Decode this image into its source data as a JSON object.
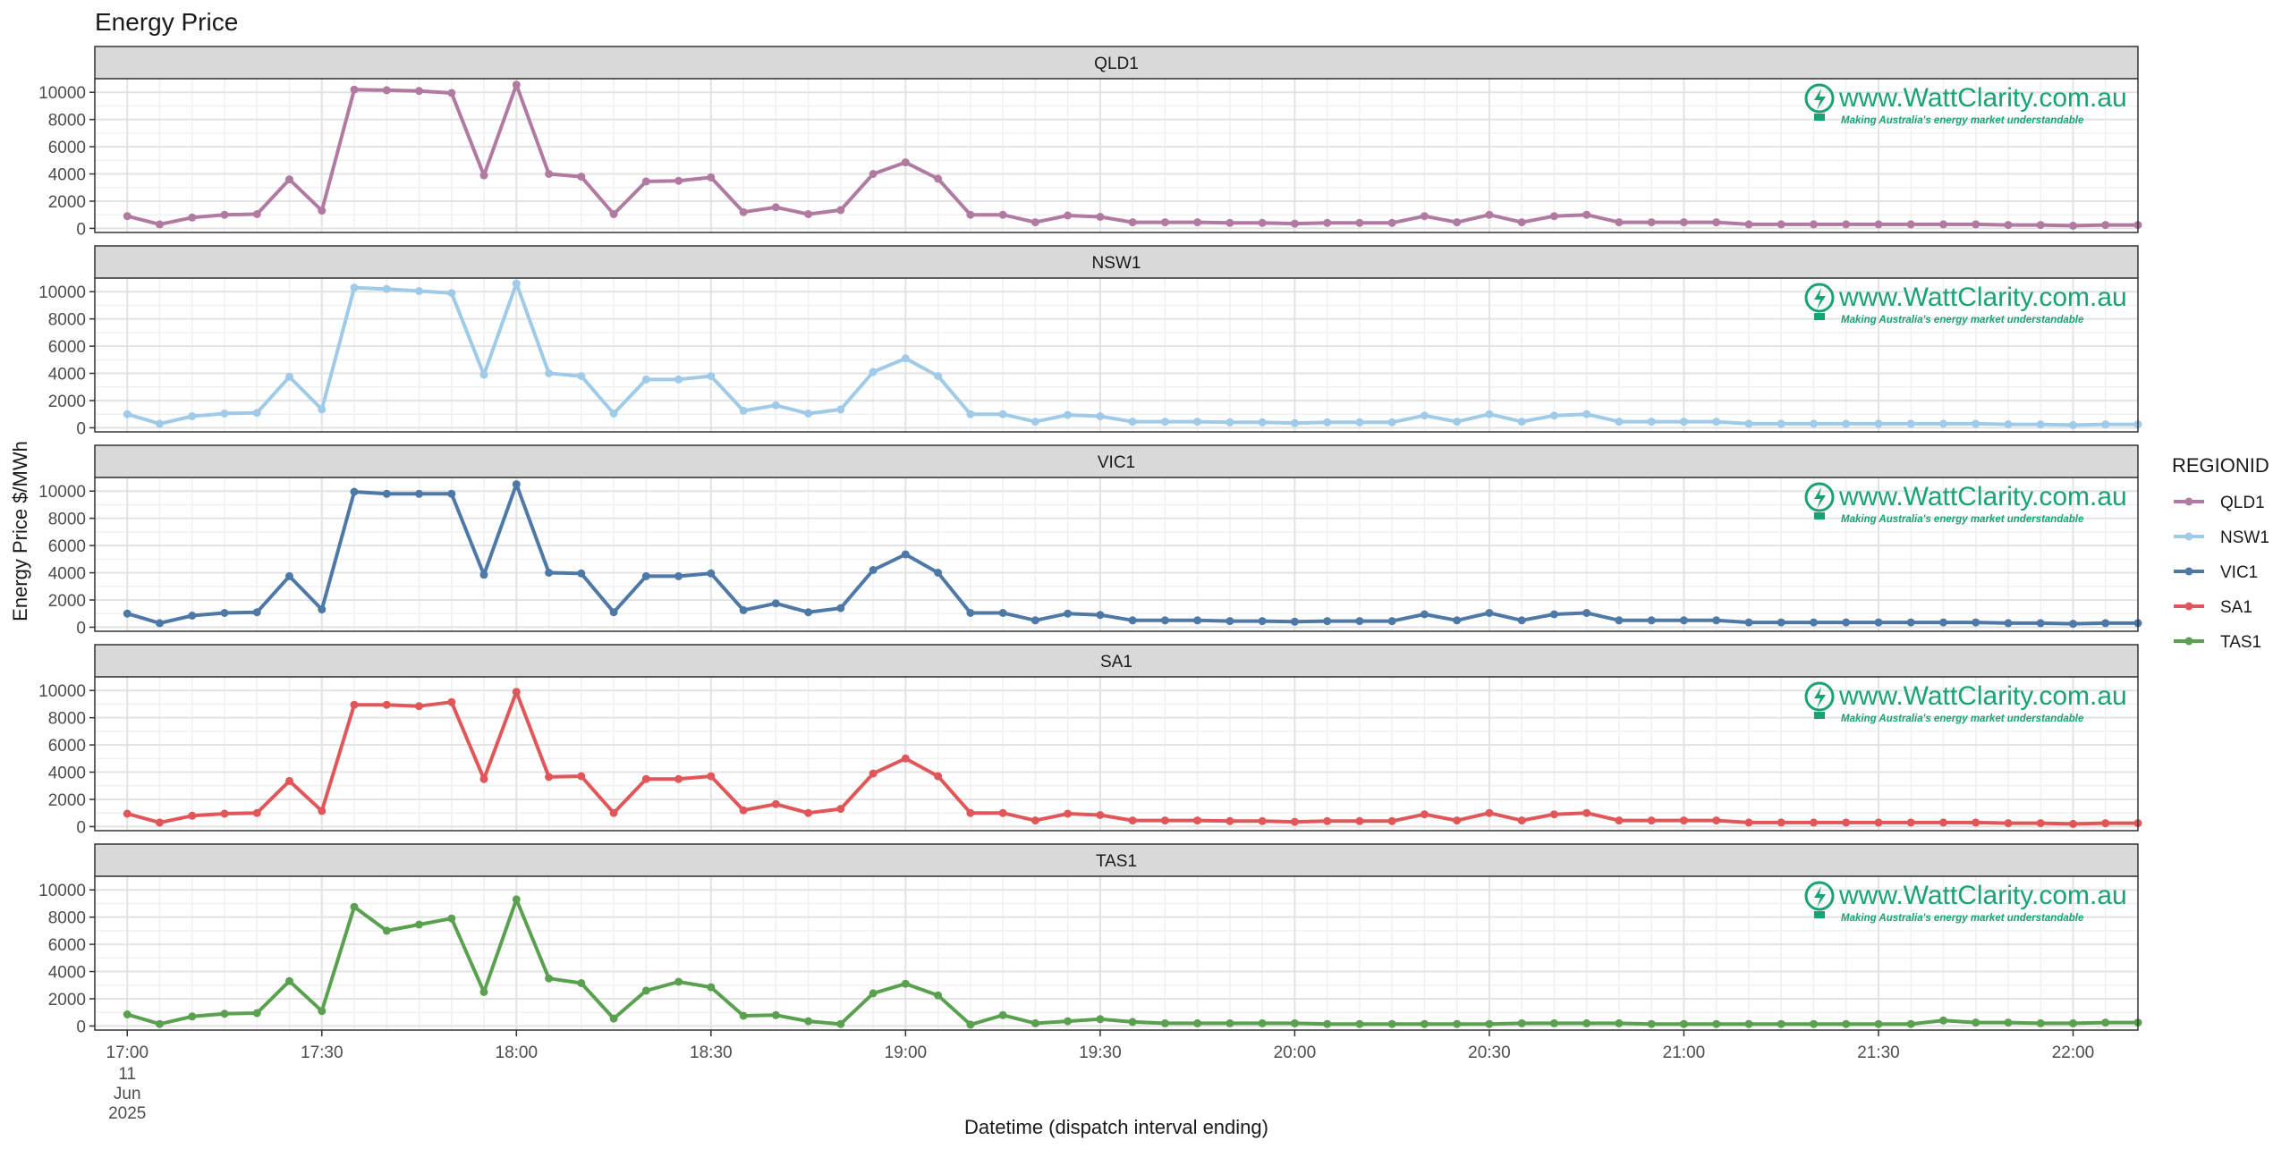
{
  "chart_data": {
    "type": "line",
    "title": "Energy Price",
    "xlabel": "Datetime (dispatch interval ending)",
    "ylabel": "Energy Price $/MWh",
    "legend": {
      "title": "REGIONID",
      "placement": "right"
    },
    "grid": true,
    "ylim": [
      -300,
      11000
    ],
    "yticks": [
      0,
      2000,
      4000,
      6000,
      8000,
      10000
    ],
    "ytick_labels": [
      "0",
      "2000",
      "4000",
      "6000",
      "8000",
      "10000"
    ],
    "x_interval_minutes": 5,
    "x_start": "2025-06-11 17:00",
    "xlim": [
      "2025-06-11 16:55",
      "2025-06-11 22:10"
    ],
    "x_tick_labels": [
      {
        "label": "17:00",
        "sub": [
          "11",
          "Jun",
          "2025"
        ]
      },
      {
        "label": "17:30",
        "sub": []
      },
      {
        "label": "18:00",
        "sub": []
      },
      {
        "label": "18:30",
        "sub": []
      },
      {
        "label": "19:00",
        "sub": []
      },
      {
        "label": "19:30",
        "sub": []
      },
      {
        "label": "20:00",
        "sub": []
      },
      {
        "label": "20:30",
        "sub": []
      },
      {
        "label": "21:00",
        "sub": []
      },
      {
        "label": "21:30",
        "sub": []
      },
      {
        "label": "22:00",
        "sub": []
      }
    ],
    "watermark": {
      "url": "www.WattClarity.com.au",
      "tagline": "Making Australia's energy market understandable"
    },
    "series": [
      {
        "name": "QLD1",
        "color": "#B07AA1",
        "values": [
          900,
          300,
          800,
          1000,
          1050,
          3600,
          1300,
          10200,
          10150,
          10100,
          9950,
          3900,
          10550,
          4000,
          3800,
          1050,
          3450,
          3500,
          3750,
          1200,
          1550,
          1050,
          1350,
          4000,
          4850,
          3650,
          1000,
          1000,
          450,
          950,
          850,
          450,
          450,
          450,
          400,
          400,
          350,
          400,
          400,
          400,
          900,
          450,
          1000,
          450,
          900,
          1000,
          450,
          450,
          450,
          450,
          300,
          300,
          300,
          300,
          300,
          300,
          300,
          300,
          250,
          250,
          200,
          250,
          250
        ]
      },
      {
        "name": "NSW1",
        "color": "#A0CBE8",
        "values": [
          1000,
          300,
          850,
          1050,
          1100,
          3750,
          1350,
          10300,
          10200,
          10050,
          9900,
          3900,
          10600,
          4000,
          3800,
          1050,
          3550,
          3550,
          3800,
          1250,
          1650,
          1050,
          1350,
          4100,
          5100,
          3800,
          1000,
          1000,
          450,
          950,
          850,
          450,
          450,
          450,
          400,
          400,
          350,
          400,
          400,
          400,
          900,
          450,
          1000,
          450,
          900,
          1000,
          450,
          450,
          450,
          450,
          300,
          300,
          300,
          300,
          300,
          300,
          300,
          300,
          250,
          250,
          200,
          250,
          250
        ]
      },
      {
        "name": "VIC1",
        "color": "#4E79A7",
        "values": [
          1000,
          300,
          850,
          1050,
          1100,
          3750,
          1300,
          9950,
          9800,
          9800,
          9800,
          3850,
          10500,
          4000,
          3950,
          1100,
          3750,
          3750,
          3950,
          1250,
          1750,
          1100,
          1400,
          4200,
          5350,
          4000,
          1050,
          1050,
          500,
          1000,
          900,
          500,
          500,
          500,
          450,
          450,
          400,
          450,
          450,
          450,
          950,
          500,
          1050,
          500,
          950,
          1050,
          500,
          500,
          500,
          500,
          350,
          350,
          350,
          350,
          350,
          350,
          350,
          350,
          300,
          300,
          250,
          300,
          300
        ]
      },
      {
        "name": "SA1",
        "color": "#E15759",
        "values": [
          950,
          300,
          800,
          950,
          1000,
          3350,
          1150,
          8950,
          8950,
          8850,
          9150,
          3500,
          9900,
          3650,
          3700,
          1000,
          3500,
          3500,
          3700,
          1200,
          1650,
          1000,
          1300,
          3900,
          5000,
          3700,
          1000,
          1000,
          450,
          950,
          850,
          450,
          450,
          450,
          400,
          400,
          350,
          400,
          400,
          400,
          900,
          450,
          1000,
          450,
          900,
          1000,
          450,
          450,
          450,
          450,
          300,
          300,
          300,
          300,
          300,
          300,
          300,
          300,
          250,
          250,
          200,
          250,
          250
        ]
      },
      {
        "name": "TAS1",
        "color": "#59A14F",
        "values": [
          850,
          150,
          700,
          900,
          950,
          3300,
          1100,
          8750,
          7000,
          7450,
          7900,
          2500,
          9300,
          3500,
          3150,
          550,
          2600,
          3250,
          2850,
          750,
          800,
          350,
          150,
          2400,
          3100,
          2250,
          100,
          800,
          200,
          350,
          500,
          300,
          200,
          200,
          200,
          200,
          200,
          150,
          150,
          150,
          150,
          150,
          150,
          200,
          200,
          200,
          200,
          150,
          150,
          150,
          150,
          150,
          150,
          150,
          150,
          150,
          400,
          250,
          250,
          200,
          200,
          250,
          250
        ]
      }
    ]
  }
}
